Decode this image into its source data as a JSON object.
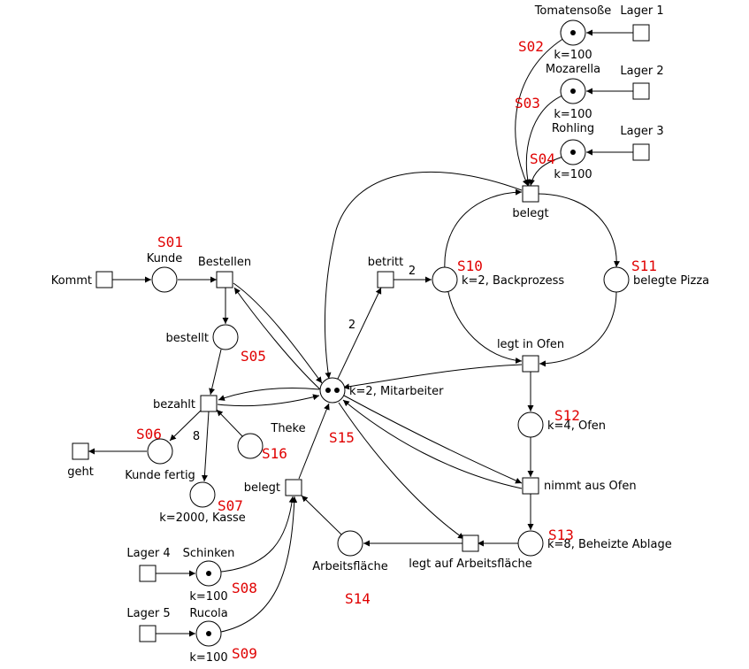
{
  "places": {
    "tomatensosse": {
      "name": "Tomatensoße",
      "capacity": "k=100",
      "id": "S02",
      "tokens": 1
    },
    "mozarella": {
      "name": "Mozarella",
      "capacity": "k=100",
      "id": "S03",
      "tokens": 1
    },
    "rohling": {
      "name": "Rohling",
      "capacity": "k=100",
      "id": "S04",
      "tokens": 1
    },
    "kunde": {
      "name": "Kunde",
      "id": "S01",
      "tokens": 0
    },
    "backprozess": {
      "name": "k=2, Backprozess",
      "id": "S10",
      "tokens": 0
    },
    "belegte_pizza": {
      "name": "belegte Pizza",
      "id": "S11",
      "tokens": 0
    },
    "bestellt": {
      "name": "bestellt",
      "id": "S05",
      "tokens": 0
    },
    "mitarbeiter": {
      "name": "k=2, Mitarbeiter",
      "id": "S15",
      "tokens": 2
    },
    "ofen": {
      "name": "k=4, Ofen",
      "id": "S12",
      "tokens": 0
    },
    "kunde_fertig": {
      "name": "Kunde fertig",
      "id": "S06",
      "tokens": 0
    },
    "theke": {
      "name": "Theke",
      "id": "S16",
      "tokens": 0
    },
    "kasse": {
      "name": "k=2000, Kasse",
      "id": "S07",
      "tokens": 0
    },
    "beheizte_ablage": {
      "name": "k=8, Beheizte Ablage",
      "id": "S13",
      "tokens": 0
    },
    "arbeitsflaeche": {
      "name": "Arbeitsfläche",
      "id": "S14",
      "tokens": 0
    },
    "schinken": {
      "name": "Schinken",
      "capacity": "k=100",
      "id": "S08",
      "tokens": 1
    },
    "rucola": {
      "name": "Rucola",
      "capacity": "k=100",
      "id": "S09",
      "tokens": 1
    }
  },
  "transitions": {
    "lager1": "Lager 1",
    "lager2": "Lager 2",
    "lager3": "Lager 3",
    "belegt_top": "belegt",
    "kommt": "Kommt",
    "bestellen": "Bestellen",
    "betritt": "betritt",
    "legt_in_ofen": "legt in Ofen",
    "bezahlt": "bezahlt",
    "geht": "geht",
    "belegt_bottom": "belegt",
    "nimmt_aus_ofen": "nimmt aus Ofen",
    "legt_auf_arbeitsflaeche": "legt auf Arbeitsfläche",
    "lager4": "Lager 4",
    "lager5": "Lager 5"
  },
  "arc_weights": {
    "betritt_to_backprozess": "2",
    "mitarbeiter_to_betritt": "2",
    "bezahlt_to_kasse": "8"
  }
}
